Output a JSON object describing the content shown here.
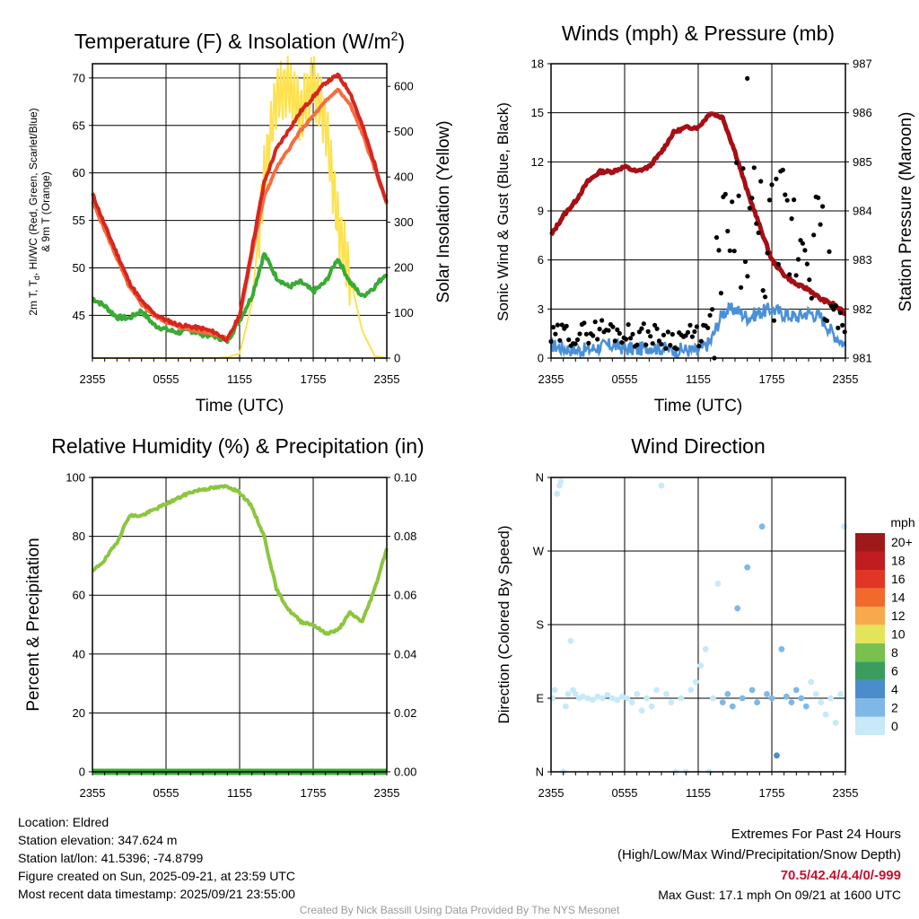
{
  "colors": {
    "temp_2m": "#d7261e",
    "dewpoint": "#3aaa35",
    "windchill": "#b2182b",
    "temp_9m": "#f46d43",
    "insolation": "#fde24f",
    "pressure": "#a50f15",
    "wind": "#4a90d9",
    "gust": "#000000",
    "rh": "#8cc63f",
    "precip": "#3aaa35"
  },
  "x_ticks": [
    "2355",
    "0555",
    "1155",
    "1755",
    "2355"
  ],
  "chart_data": [
    {
      "id": "temperature",
      "type": "line",
      "title_prefix": "Temperature (F) & Insolation (W/m",
      "title_sup": "2",
      "title_suffix": ")",
      "xlabel": "Time (UTC)",
      "ylabel_lines": [
        "2m T, T",
        "d",
        ", HI/WC (Red, Green, Scarlet/Blue)",
        "& 9m T (Orange)"
      ],
      "ylabel2": "Solar Insolation (Yellow)",
      "ylim": [
        40.5,
        71.5
      ],
      "y2lim": [
        0,
        650
      ],
      "yticks": [
        "45",
        "50",
        "55",
        "60",
        "65",
        "70"
      ],
      "y2ticks": [
        "0",
        "100",
        "200",
        "300",
        "400",
        "500",
        "600"
      ],
      "x_hours": [
        0,
        1,
        2,
        3,
        4,
        5,
        6,
        7,
        8,
        9,
        10,
        11,
        12,
        13,
        14,
        15,
        16,
        17,
        18,
        19,
        20,
        21,
        22,
        23,
        24
      ],
      "series": [
        {
          "name": "2m T",
          "values": [
            57.8,
            54.5,
            51.5,
            48.5,
            46.5,
            45.2,
            44.5,
            44.0,
            43.8,
            43.6,
            43.2,
            42.4,
            45.0,
            52.0,
            59.0,
            62.5,
            64.5,
            66.5,
            68.0,
            69.5,
            70.3,
            68.5,
            65.0,
            61.0,
            56.8
          ]
        },
        {
          "name": "9m T",
          "values": [
            57.0,
            54.0,
            51.0,
            48.0,
            46.2,
            45.0,
            44.3,
            43.8,
            43.5,
            43.3,
            43.0,
            42.5,
            44.8,
            51.5,
            57.5,
            60.5,
            62.5,
            64.5,
            66.0,
            67.5,
            68.8,
            67.2,
            64.2,
            60.5,
            56.8
          ]
        },
        {
          "name": "Td",
          "values": [
            46.8,
            46.0,
            44.8,
            44.7,
            45.5,
            44.0,
            43.5,
            43.2,
            43.4,
            43.0,
            42.8,
            42.3,
            44.5,
            47.0,
            51.5,
            49.0,
            48.0,
            48.5,
            47.5,
            48.5,
            51.0,
            48.5,
            47.0,
            48.0,
            49.5
          ]
        },
        {
          "name": "Insolation",
          "values": [
            0,
            0,
            0,
            0,
            0,
            0,
            0,
            0,
            0,
            0,
            0,
            2,
            10,
            120,
            400,
            580,
            600,
            540,
            610,
            520,
            300,
            180,
            60,
            5,
            0
          ]
        }
      ]
    },
    {
      "id": "winds",
      "type": "scatter",
      "title": "Winds (mph) & Pressure (mb)",
      "xlabel": "Time (UTC)",
      "ylabel": "Sonic Wind & Gust (Blue, Black)",
      "ylabel2": "Station Pressure (Maroon)",
      "ylim": [
        0,
        18
      ],
      "y2lim": [
        981,
        987
      ],
      "yticks": [
        "0",
        "3",
        "6",
        "9",
        "12",
        "15",
        "18"
      ],
      "y2ticks": [
        "981",
        "982",
        "983",
        "984",
        "985",
        "986",
        "987"
      ],
      "x_hours": [
        0,
        1,
        2,
        3,
        4,
        5,
        6,
        7,
        8,
        9,
        10,
        11,
        12,
        13,
        14,
        15,
        16,
        17,
        18,
        19,
        20,
        21,
        22,
        23,
        24
      ],
      "series": [
        {
          "name": "Pressure",
          "values": [
            983.5,
            983.9,
            984.2,
            984.6,
            984.8,
            984.8,
            984.9,
            984.8,
            984.9,
            985.2,
            985.6,
            985.7,
            985.7,
            986.0,
            985.9,
            985.2,
            984.4,
            983.7,
            983.0,
            982.7,
            982.5,
            982.4,
            982.2,
            982.1,
            981.9
          ]
        },
        {
          "name": "Sonic Wind",
          "values": [
            0.8,
            0.6,
            0.5,
            0.5,
            0.7,
            0.8,
            0.6,
            0.5,
            0.7,
            0.6,
            0.5,
            0.5,
            0.4,
            1.0,
            2.8,
            3.0,
            2.5,
            2.8,
            3.0,
            2.7,
            2.5,
            2.8,
            2.5,
            1.5,
            0.8
          ]
        },
        {
          "name": "Gust",
          "values": [
            1.2,
            1.5,
            1.4,
            1.6,
            1.8,
            1.7,
            1.5,
            1.4,
            1.5,
            1.3,
            1.2,
            1.4,
            1.3,
            2.0,
            6.5,
            7.5,
            8.0,
            7.0,
            6.5,
            7.5,
            7.0,
            8.0,
            6.0,
            3.0,
            1.5
          ]
        },
        {
          "name": "Max Gust",
          "x": [
            16.0
          ],
          "values": [
            17.1
          ]
        }
      ]
    },
    {
      "id": "humidity",
      "type": "line",
      "title": "Relative Humidity (%) & Precipitation (in)",
      "ylabel": "Percent & Precipitation",
      "ylim": [
        0,
        100
      ],
      "y2lim": [
        0,
        0.1
      ],
      "yticks": [
        "0",
        "20",
        "40",
        "60",
        "80",
        "100"
      ],
      "y2ticks": [
        "0.00",
        "0.02",
        "0.04",
        "0.06",
        "0.08",
        "0.10"
      ],
      "x_hours": [
        0,
        1,
        2,
        3,
        4,
        5,
        6,
        7,
        8,
        9,
        10,
        11,
        12,
        13,
        14,
        15,
        16,
        17,
        18,
        19,
        20,
        21,
        22,
        23,
        24
      ],
      "series": [
        {
          "name": "RH",
          "values": [
            68,
            72,
            78,
            87,
            87,
            89,
            91,
            93,
            95,
            96,
            96.5,
            97,
            95,
            90,
            80,
            62,
            55,
            51,
            50,
            47,
            48,
            54,
            51,
            62,
            76
          ]
        },
        {
          "name": "Precipitation",
          "values": [
            0,
            0,
            0,
            0,
            0,
            0,
            0,
            0,
            0,
            0,
            0,
            0,
            0,
            0,
            0,
            0,
            0,
            0,
            0,
            0,
            0,
            0,
            0,
            0,
            0
          ]
        }
      ]
    },
    {
      "id": "direction",
      "type": "scatter",
      "title": "Wind Direction",
      "ylabel": "Direction (Colored By Speed)",
      "yticks": [
        "N",
        "E",
        "S",
        "W",
        "N"
      ],
      "colorbar": {
        "title": "mph",
        "labels": [
          "0",
          "2",
          "4",
          "6",
          "8",
          "10",
          "12",
          "14",
          "16",
          "18",
          "20+"
        ],
        "colors": [
          "#c7e9f8",
          "#7fb8e6",
          "#4a8ccc",
          "#3a9d5d",
          "#78c04f",
          "#e4e45a",
          "#f9a94d",
          "#f06a2c",
          "#e03626",
          "#c01d22",
          "#9e1a1a"
        ]
      },
      "points": [
        {
          "x": 0.1,
          "dir": 90,
          "speed": 0
        },
        {
          "x": 0.3,
          "dir": 100,
          "speed": 0
        },
        {
          "x": 0.5,
          "dir": 340,
          "speed": 0
        },
        {
          "x": 0.7,
          "dir": 350,
          "speed": 0
        },
        {
          "x": 0.8,
          "dir": 355,
          "speed": 0
        },
        {
          "x": 1.0,
          "dir": 0,
          "speed": 0
        },
        {
          "x": 1.2,
          "dir": 80,
          "speed": 0
        },
        {
          "x": 1.4,
          "dir": 95,
          "speed": 0
        },
        {
          "x": 1.6,
          "dir": 160,
          "speed": 0
        },
        {
          "x": 1.8,
          "dir": 100,
          "speed": 0
        },
        {
          "x": 2.0,
          "dir": 95,
          "speed": 0
        },
        {
          "x": 2.3,
          "dir": 90,
          "speed": 0
        },
        {
          "x": 2.6,
          "dir": 92,
          "speed": 0
        },
        {
          "x": 3.0,
          "dir": 90,
          "speed": 0
        },
        {
          "x": 3.4,
          "dir": 88,
          "speed": 0
        },
        {
          "x": 3.8,
          "dir": 92,
          "speed": 0
        },
        {
          "x": 4.2,
          "dir": 90,
          "speed": 0
        },
        {
          "x": 4.6,
          "dir": 94,
          "speed": 0
        },
        {
          "x": 5.0,
          "dir": 90,
          "speed": 0
        },
        {
          "x": 5.4,
          "dir": 88,
          "speed": 0
        },
        {
          "x": 5.8,
          "dir": 92,
          "speed": 0
        },
        {
          "x": 6.2,
          "dir": 90,
          "speed": 0
        },
        {
          "x": 6.6,
          "dir": 85,
          "speed": 0
        },
        {
          "x": 7.0,
          "dir": 95,
          "speed": 0
        },
        {
          "x": 7.4,
          "dir": 75,
          "speed": 1
        },
        {
          "x": 7.8,
          "dir": 90,
          "speed": 0
        },
        {
          "x": 8.2,
          "dir": 80,
          "speed": 0
        },
        {
          "x": 8.6,
          "dir": 100,
          "speed": 0
        },
        {
          "x": 9.0,
          "dir": 350,
          "speed": 0
        },
        {
          "x": 9.4,
          "dir": 95,
          "speed": 0
        },
        {
          "x": 9.8,
          "dir": 85,
          "speed": 0
        },
        {
          "x": 10.2,
          "dir": 0,
          "speed": 0
        },
        {
          "x": 10.6,
          "dir": 90,
          "speed": 0
        },
        {
          "x": 11.0,
          "dir": 0,
          "speed": 0
        },
        {
          "x": 11.4,
          "dir": 100,
          "speed": 0
        },
        {
          "x": 11.8,
          "dir": 110,
          "speed": 0
        },
        {
          "x": 12.2,
          "dir": 130,
          "speed": 1
        },
        {
          "x": 12.6,
          "dir": 150,
          "speed": 1
        },
        {
          "x": 12.9,
          "dir": 0,
          "speed": 0
        },
        {
          "x": 13.2,
          "dir": 90,
          "speed": 1
        },
        {
          "x": 13.6,
          "dir": 230,
          "speed": 1
        },
        {
          "x": 14.0,
          "dir": 85,
          "speed": 2
        },
        {
          "x": 14.4,
          "dir": 95,
          "speed": 3
        },
        {
          "x": 14.8,
          "dir": 80,
          "speed": 2
        },
        {
          "x": 15.2,
          "dir": 200,
          "speed": 2
        },
        {
          "x": 15.6,
          "dir": 90,
          "speed": 3
        },
        {
          "x": 16.0,
          "dir": 250,
          "speed": 3
        },
        {
          "x": 16.4,
          "dir": 100,
          "speed": 2
        },
        {
          "x": 16.8,
          "dir": 85,
          "speed": 3
        },
        {
          "x": 17.2,
          "dir": 300,
          "speed": 2
        },
        {
          "x": 17.6,
          "dir": 95,
          "speed": 3
        },
        {
          "x": 18.0,
          "dir": 90,
          "speed": 2
        },
        {
          "x": 18.4,
          "dir": 20,
          "speed": 4
        },
        {
          "x": 18.8,
          "dir": 150,
          "speed": 2
        },
        {
          "x": 19.2,
          "dir": 92,
          "speed": 2
        },
        {
          "x": 19.6,
          "dir": 85,
          "speed": 3
        },
        {
          "x": 20.0,
          "dir": 100,
          "speed": 2
        },
        {
          "x": 20.4,
          "dir": 90,
          "speed": 2
        },
        {
          "x": 20.8,
          "dir": 80,
          "speed": 2
        },
        {
          "x": 21.2,
          "dir": 110,
          "speed": 1
        },
        {
          "x": 21.6,
          "dir": 95,
          "speed": 1
        },
        {
          "x": 22.0,
          "dir": 85,
          "speed": 1
        },
        {
          "x": 22.4,
          "dir": 70,
          "speed": 1
        },
        {
          "x": 22.8,
          "dir": 90,
          "speed": 0
        },
        {
          "x": 23.2,
          "dir": 60,
          "speed": 0
        },
        {
          "x": 23.6,
          "dir": 95,
          "speed": 0
        },
        {
          "x": 23.9,
          "dir": 300,
          "speed": 0
        }
      ]
    }
  ],
  "info": {
    "location": "Location: Eldred",
    "elevation": "Station elevation: 347.624 m",
    "latlon": "Station lat/lon: 41.5396; -74.8799",
    "created": "Figure created on Sun, 2025-09-21, at 23:59 UTC",
    "recent": "Most recent data timestamp: 2025/09/21 23:55:00"
  },
  "extremes": {
    "title": "Extremes For Past 24 Hours",
    "subtitle": "(High/Low/Max Wind/Precipitation/Snow Depth)",
    "values": "70.5/42.4/4.4/0/-999",
    "gust": "Max Gust: 17.1 mph On 09/21 at 1600 UTC"
  },
  "credit": "Created By Nick Bassill Using Data Provided By The NYS Mesonet"
}
